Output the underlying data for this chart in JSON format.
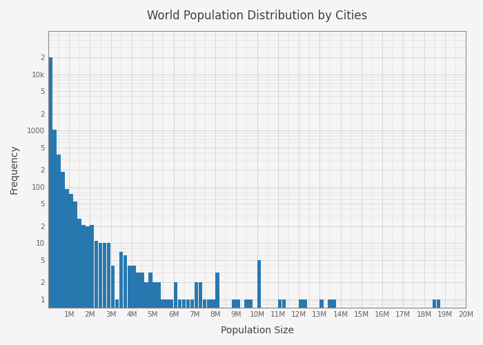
{
  "title": "World Population Distribution by Cities",
  "xlabel": "Population Size",
  "ylabel": "Frequency",
  "bar_color": "#2878b0",
  "background_color": "#f5f5f5",
  "grid_color": "#cccccc",
  "title_color": "#404040",
  "axis_label_color": "#404040",
  "tick_label_color": "#606060",
  "xtick_positions": [
    0,
    1000000,
    2000000,
    3000000,
    4000000,
    5000000,
    6000000,
    7000000,
    8000000,
    9000000,
    10000000,
    11000000,
    12000000,
    13000000,
    14000000,
    15000000,
    16000000,
    17000000,
    18000000,
    19000000,
    20000000
  ],
  "xtick_labels": [
    "",
    "1M",
    "2M",
    "3M",
    "4M",
    "5M",
    "6M",
    "7M",
    "8M",
    "9M",
    "10M",
    "11M",
    "12M",
    "13M",
    "14M",
    "15M",
    "16M",
    "17M",
    "18M",
    "19M",
    "20M"
  ],
  "bin_width": 200000,
  "heights": [
    20000,
    1050,
    370,
    185,
    90,
    75,
    55,
    27,
    21,
    20,
    21,
    11,
    10,
    10,
    10,
    4,
    1,
    7,
    6,
    4,
    4,
    3,
    3,
    2,
    3,
    2,
    2,
    1,
    1,
    1,
    2,
    1,
    1,
    1,
    1,
    2,
    2,
    1,
    1,
    1,
    3,
    0,
    0,
    0,
    1,
    1,
    0,
    1,
    1,
    0,
    5,
    0,
    0,
    0,
    0,
    1,
    1,
    0,
    0,
    0,
    1,
    1,
    0,
    0,
    0,
    1,
    0,
    1,
    1,
    0,
    0,
    0,
    0,
    0,
    0,
    0,
    0,
    0,
    0,
    0,
    0,
    0,
    0,
    0,
    0,
    0,
    0,
    0,
    0,
    0,
    0,
    0,
    1,
    1,
    0,
    0,
    0,
    0,
    0,
    0
  ]
}
